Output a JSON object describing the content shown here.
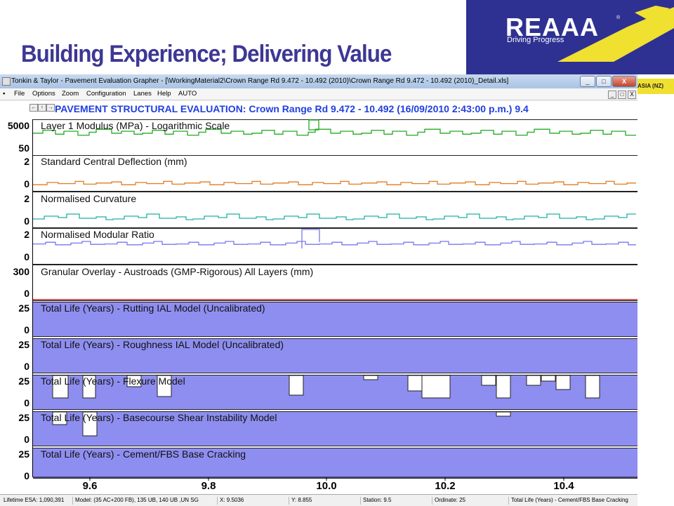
{
  "slide": {
    "title": "Building Experience; Delivering Value"
  },
  "logo": {
    "name": "REAAA",
    "tagline": "Driving Progress",
    "reg": "®",
    "strip_text": "ASIA (NZ)",
    "brand_color": "#2e3192",
    "accent_color": "#f0e030"
  },
  "window": {
    "title": "Tonkin & Taylor - Pavement Evaluation Grapher - [\\WorkingMaterial2\\Crown Range Rd 9.472 - 10.492 (2010)\\Crown Range Rd 9.472 - 10.492 (2010)_Detail.xls]",
    "menus": [
      "File",
      "Options",
      "Zoom",
      "Configuration",
      "Lanes",
      "Help",
      "AUTO"
    ],
    "buttons": {
      "minimize": "_",
      "maximize": "□",
      "close": "X"
    }
  },
  "chart": {
    "title": "PAVEMENT STRUCTURAL EVALUATION: Crown Range Rd 9.472 - 10.492 (16/09/2010 2:43:00 p.m.) 9.4",
    "colors": {
      "modulus": "#22aa22",
      "deflection": "#e07b20",
      "curvature": "#1fb0a5",
      "modular": "#7777ee",
      "fill": "#8e8ef0",
      "white": "#ffffff"
    },
    "x_ticks": [
      "9.6",
      "9.8",
      "10.0",
      "10.2",
      "10.4"
    ],
    "panels": [
      {
        "label": "Layer 1 Modulus (MPa) - Logarithmic Scale",
        "ytop": "5000",
        "ybottom": "50"
      },
      {
        "label": "Standard Central Deflection (mm)",
        "ytop": "2",
        "ybottom": "0"
      },
      {
        "label": "Normalised Curvature",
        "ytop": "2",
        "ybottom": "0"
      },
      {
        "label": "Normalised Modular Ratio",
        "ytop": "2",
        "ybottom": "0"
      },
      {
        "label": "Granular Overlay - Austroads (GMP-Rigorous) All Layers (mm)",
        "ytop": "300",
        "ybottom": "0"
      },
      {
        "label": "Total Life (Years) - Rutting IAL Model (Uncalibrated)",
        "ytop": "25",
        "ybottom": "0"
      },
      {
        "label": "Total Life (Years) - Roughness IAL Model (Uncalibrated)",
        "ytop": "25",
        "ybottom": "0"
      },
      {
        "label": "Total Life (Years) - Flexure Model",
        "ytop": "25",
        "ybottom": "0"
      },
      {
        "label": "Total Life (Years) - Basecourse Shear Instability Model",
        "ytop": "25",
        "ybottom": "0"
      },
      {
        "label": "Total Life (Years) - Cement/FBS Base Cracking",
        "ytop": "25",
        "ybottom": "0"
      }
    ]
  },
  "status": {
    "lifetime": "Lifetime ESA: 1,090,391",
    "model": "Model: (35 AC+200 FB), 135 UB, 140 UB ,UN SG",
    "x": "X: 9.5036",
    "y": "Y: 8.855",
    "station": "Station: 9.5",
    "ordinate": "Ordinate: 25",
    "panel": "Total Life (Years) - Cement/FBS Base Cracking"
  }
}
